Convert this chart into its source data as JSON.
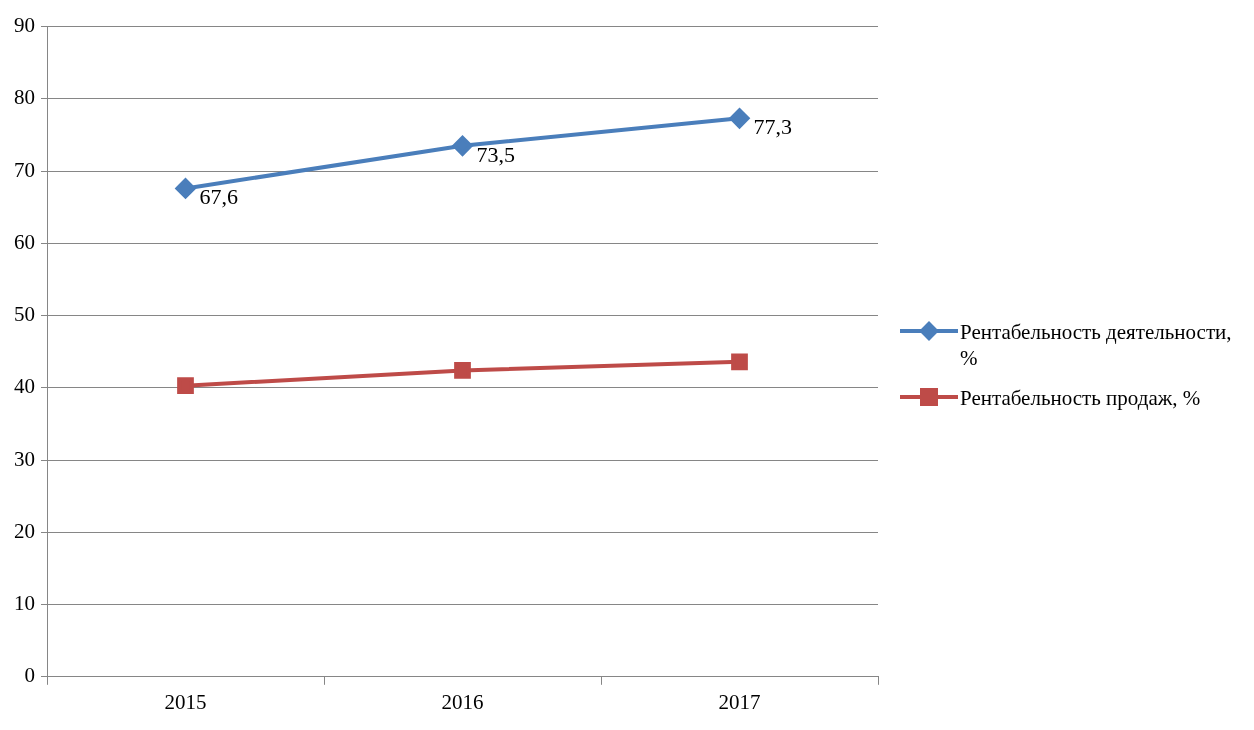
{
  "chart_data": {
    "type": "line",
    "categories": [
      "2015",
      "2016",
      "2017"
    ],
    "series": [
      {
        "name": "Рентабельность деятельности, %",
        "color": "#4a7ebb",
        "marker": "diamond",
        "values": [
          67.6,
          73.5,
          77.3
        ],
        "value_labels": [
          "67,6",
          "73,5",
          "77,3"
        ]
      },
      {
        "name": "Рентабельность продаж, %",
        "color": "#be4b48",
        "marker": "square",
        "values": [
          40.3,
          42.4,
          43.6
        ]
      }
    ],
    "ylim": [
      0,
      90
    ],
    "yticks": [
      0,
      10,
      20,
      30,
      40,
      50,
      60,
      70,
      80,
      90
    ],
    "grid": "y",
    "legend": "right",
    "line_style": "solid"
  }
}
